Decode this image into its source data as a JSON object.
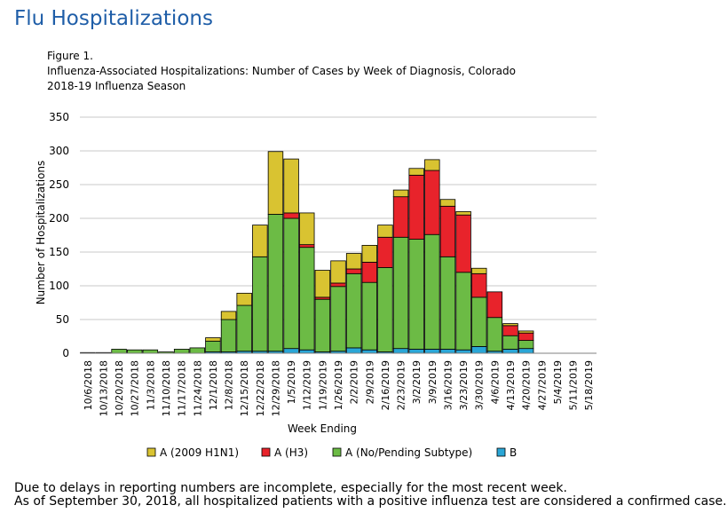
{
  "page": {
    "title": "Flu Hospitalizations",
    "figure_label": "Figure 1.",
    "figure_caption_line1": "Influenza-Associated Hospitalizations: Number of  Cases by Week of Diagnosis, Colorado",
    "figure_caption_line2": "2018-19  Influenza Season",
    "footnote_line1": "Due to delays in reporting numbers are incomplete, especially for the most recent week.",
    "footnote_line2": "As of September 30, 2018, all hospitalized patients with a positive influenza test are considered a confirmed case."
  },
  "chart_data": {
    "type": "bar",
    "stacked": true,
    "title": "",
    "xlabel": "Week Ending",
    "ylabel": "Number of Hospitalizations",
    "ylim": [
      0,
      350
    ],
    "yticks": [
      0,
      50,
      100,
      150,
      200,
      250,
      300,
      350
    ],
    "grid": true,
    "legend_position": "bottom",
    "categories": [
      "10/6/2018",
      "10/13/2018",
      "10/20/2018",
      "10/27/2018",
      "11/3/2018",
      "11/10/2018",
      "11/17/2018",
      "11/24/2018",
      "12/1/2018",
      "12/8/2018",
      "12/15/2018",
      "12/22/2018",
      "12/29/2018",
      "1/5/2019",
      "1/12/2019",
      "1/19/2019",
      "1/26/2019",
      "2/2/2019",
      "2/9/2019",
      "2/16/2019",
      "2/23/2019",
      "3/2/2019",
      "3/9/2019",
      "3/16/2019",
      "3/23/2019",
      "3/30/2019",
      "4/6/2019",
      "4/13/2019",
      "4/20/2019",
      "4/27/2019",
      "5/4/2019",
      "5/11/2019",
      "5/18/2019"
    ],
    "series": [
      {
        "name": "B",
        "color": "#2aa6d6",
        "values": [
          0,
          0,
          0,
          0,
          0,
          0,
          0,
          0,
          2,
          2,
          3,
          3,
          3,
          7,
          5,
          2,
          3,
          8,
          5,
          2,
          7,
          6,
          6,
          6,
          5,
          10,
          3,
          6,
          7,
          0,
          0,
          0,
          0
        ]
      },
      {
        "name": "A (No/Pending Subtype)",
        "color": "#6cbb45",
        "values": [
          1,
          1,
          6,
          5,
          5,
          2,
          6,
          8,
          16,
          48,
          68,
          140,
          203,
          193,
          152,
          78,
          96,
          110,
          100,
          125,
          165,
          163,
          170,
          137,
          115,
          73,
          50,
          20,
          12,
          0,
          0,
          0,
          0
        ]
      },
      {
        "name": "A (H3)",
        "color": "#e8232b",
        "values": [
          0,
          0,
          0,
          0,
          0,
          0,
          0,
          0,
          0,
          0,
          0,
          0,
          0,
          8,
          4,
          3,
          5,
          7,
          30,
          45,
          60,
          95,
          95,
          75,
          85,
          35,
          38,
          15,
          11,
          0,
          0,
          0,
          0
        ]
      },
      {
        "name": "A (2009 H1N1)",
        "color": "#d9c331",
        "values": [
          0,
          0,
          0,
          0,
          0,
          0,
          0,
          0,
          5,
          12,
          18,
          47,
          93,
          80,
          47,
          40,
          33,
          23,
          25,
          18,
          10,
          10,
          16,
          10,
          5,
          8,
          0,
          3,
          3,
          0,
          0,
          0,
          0
        ]
      }
    ],
    "legend": [
      "A (2009 H1N1)",
      "A (H3)",
      "A (No/Pending Subtype)",
      "B"
    ]
  }
}
